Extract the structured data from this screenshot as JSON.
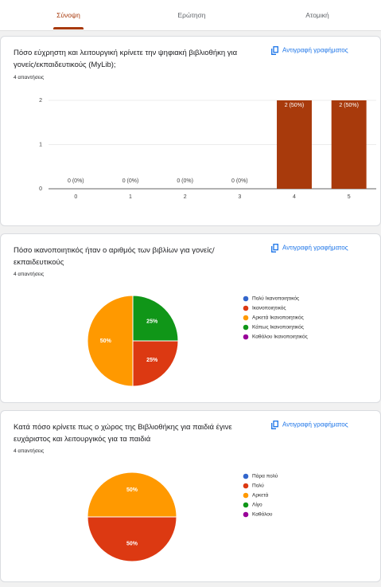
{
  "tabs": [
    "Σύνοψη",
    "Ερώτηση",
    "Ατομική"
  ],
  "copy_label": "Αντιγραφή γραφήματος",
  "chart_data": [
    {
      "type": "bar",
      "title": "Πόσο  εύχρηστη και λειτουργική κρίνετε  την ψηφιακή βιβλιοθήκη για γονείς/εκπαιδευτικούς (MyLib);",
      "subtitle": "4 απαντήσεις",
      "categories": [
        "0",
        "1",
        "2",
        "3",
        "4",
        "5"
      ],
      "values": [
        0,
        0,
        0,
        0,
        2,
        2
      ],
      "value_labels": [
        "0 (0%)",
        "0 (0%)",
        "0 (0%)",
        "0 (0%)",
        "2 (50%)",
        "2 (50%)"
      ],
      "color": "#a83a0c",
      "ylim": [
        0,
        2
      ],
      "yticks": [
        0,
        1,
        2
      ],
      "grid": true
    },
    {
      "type": "pie",
      "title": "Πόσο ικανοποιητικός  ήταν ο αριθμός των βιβλίων για γονείς/ εκπαιδευτικούς",
      "subtitle": "4 απαντήσεις",
      "categories": [
        "Πολύ Ικανοποιητικός",
        "Ικανοποιητικός",
        "Αρκετά Ικανοποιητικός",
        "Κάπως Ικανοποιητικός",
        "Καθόλου Ικανοποιητικός"
      ],
      "values": [
        0,
        25,
        50,
        25,
        0
      ],
      "value_labels": [
        null,
        "25%",
        "50%",
        "25%",
        null
      ],
      "colors": [
        "#3366cc",
        "#dc3912",
        "#ff9900",
        "#109618",
        "#990099"
      ],
      "legend": "right"
    },
    {
      "type": "pie",
      "title": "Κατά πόσο κρίνετε πως ο χώρος της Βιβλιοθήκης για παιδιά έγινε ευχάριστος και λειτουργικός για τα παιδιά",
      "subtitle": "4 απαντήσεις",
      "categories": [
        "Πάρα πολύ",
        "Πολύ",
        "Αρκετά",
        "Λίγο",
        "Καθόλου"
      ],
      "values": [
        0,
        50,
        50,
        0,
        0
      ],
      "value_labels": [
        null,
        "50%",
        "50%",
        null,
        null
      ],
      "colors": [
        "#3366cc",
        "#dc3912",
        "#ff9900",
        "#109618",
        "#990099"
      ],
      "legend": "right"
    }
  ]
}
